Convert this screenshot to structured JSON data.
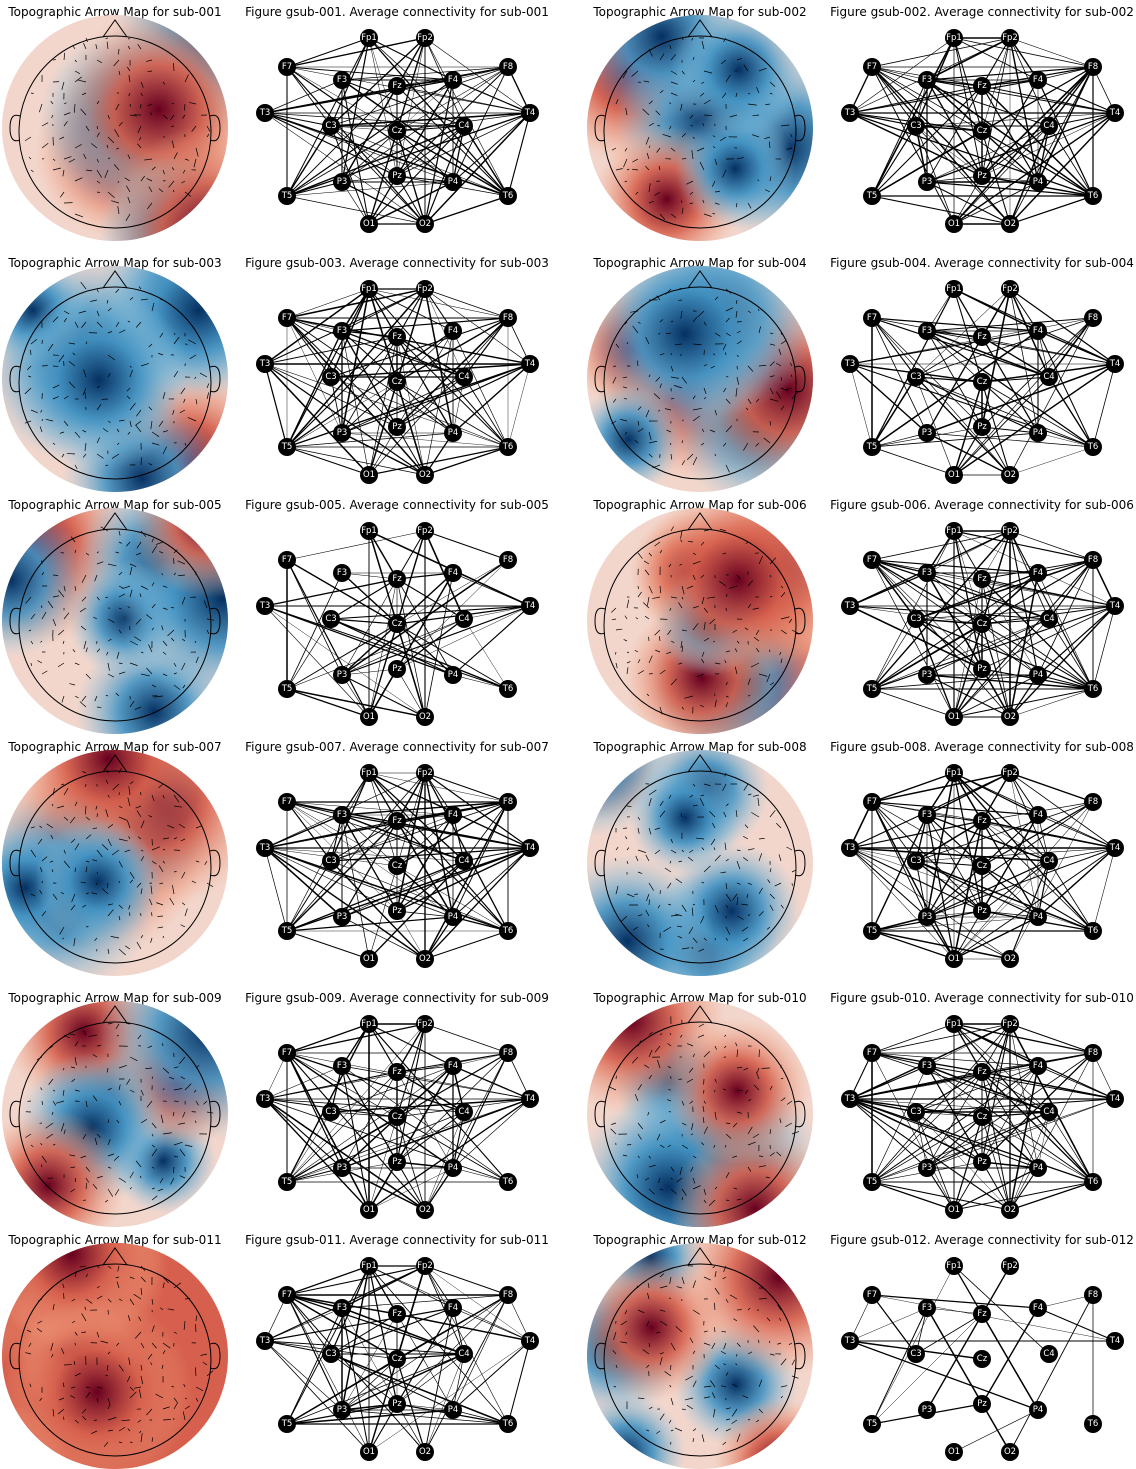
{
  "subjects": [
    {
      "topo_title": "Topographic Arrow Map for sub-001",
      "graph_title": "Figure gsub-001. Average connectivity for sub-001"
    },
    {
      "topo_title": "Topographic Arrow Map for sub-002",
      "graph_title": "Figure gsub-002. Average connectivity for sub-002"
    },
    {
      "topo_title": "Topographic Arrow Map for sub-003",
      "graph_title": "Figure gsub-003. Average connectivity for sub-003"
    },
    {
      "topo_title": "Topographic Arrow Map for sub-004",
      "graph_title": "Figure gsub-004. Average connectivity for sub-004"
    },
    {
      "topo_title": "Topographic Arrow Map for sub-005",
      "graph_title": "Figure gsub-005. Average connectivity for sub-005"
    },
    {
      "topo_title": "Topographic Arrow Map for sub-006",
      "graph_title": "Figure gsub-006. Average connectivity for sub-006"
    },
    {
      "topo_title": "Topographic Arrow Map for sub-007",
      "graph_title": "Figure gsub-007. Average connectivity for sub-007"
    },
    {
      "topo_title": "Topographic Arrow Map for sub-008",
      "graph_title": "Figure gsub-008. Average connectivity for sub-008"
    },
    {
      "topo_title": "Topographic Arrow Map for sub-009",
      "graph_title": "Figure gsub-009. Average connectivity for sub-009"
    },
    {
      "topo_title": "Topographic Arrow Map for sub-010",
      "graph_title": "Figure gsub-010. Average connectivity for sub-010"
    },
    {
      "topo_title": "Topographic Arrow Map for sub-011",
      "graph_title": "Figure gsub-011. Average connectivity for sub-011"
    },
    {
      "topo_title": "Topographic Arrow Map for sub-012",
      "graph_title": "Figure gsub-012. Average connectivity for sub-012"
    }
  ],
  "electrodes": [
    "Fp1",
    "Fp2",
    "F7",
    "F3",
    "Fz",
    "F4",
    "F8",
    "T3",
    "C3",
    "Cz",
    "C4",
    "T4",
    "T5",
    "P3",
    "Pz",
    "P4",
    "T6",
    "O1",
    "O2"
  ]
}
